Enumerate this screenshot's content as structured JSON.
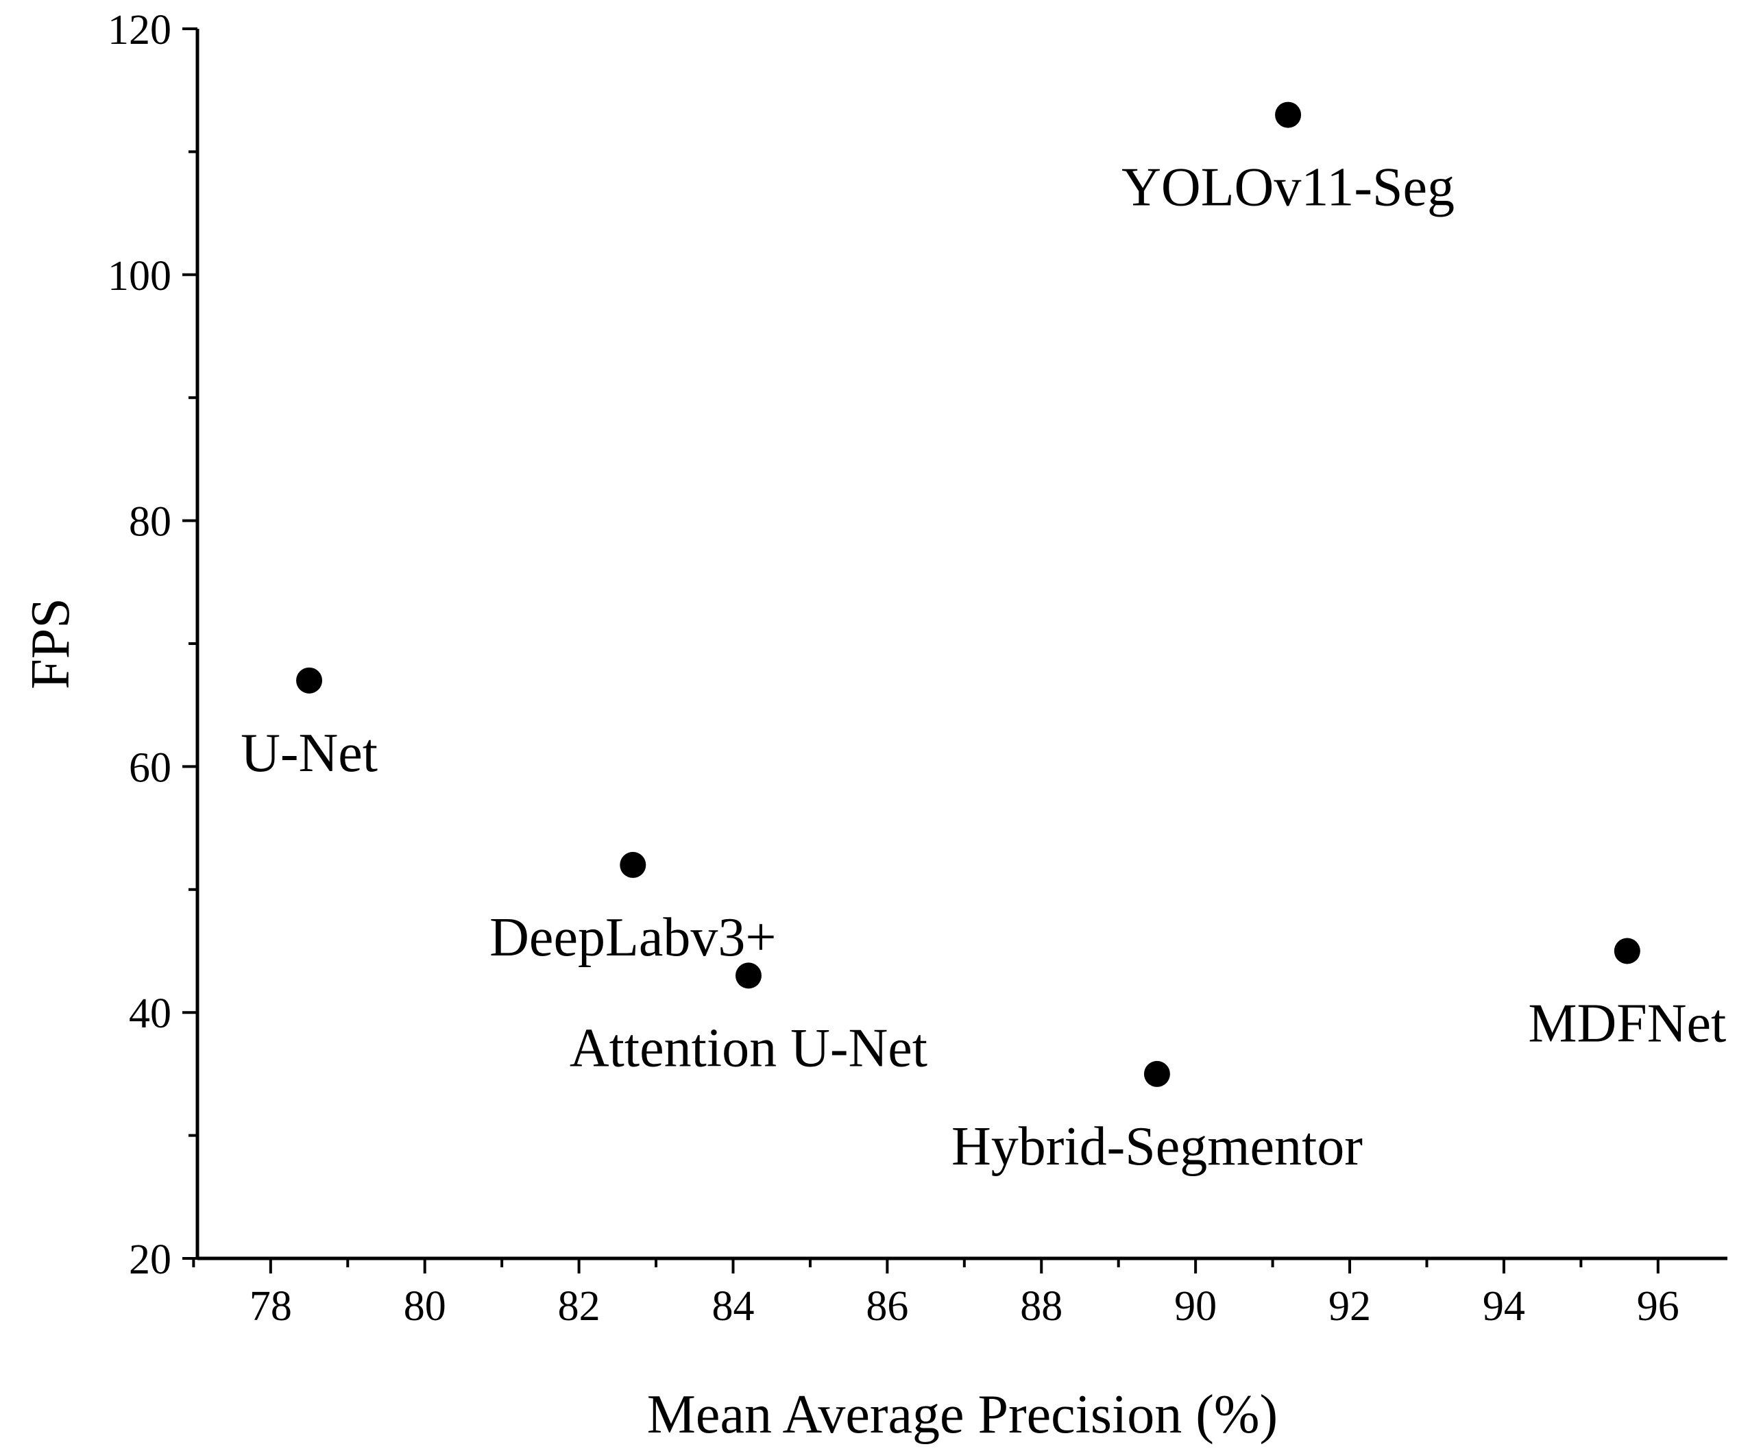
{
  "chart_data": {
    "type": "scatter",
    "title": "",
    "xlabel": "Mean Average Precision (%)",
    "ylabel": "FPS",
    "xlim": [
      77.05,
      96.9
    ],
    "ylim": [
      20,
      120
    ],
    "xticks": [
      78,
      80,
      82,
      84,
      86,
      88,
      90,
      92,
      94,
      96
    ],
    "yticks": [
      20,
      40,
      60,
      80,
      100,
      120
    ],
    "grid": false,
    "marker_color": "#000000",
    "points": [
      {
        "label": "U-Net",
        "x": 78.5,
        "y": 67,
        "label_pos": "below"
      },
      {
        "label": "DeepLabv3+",
        "x": 82.7,
        "y": 52,
        "label_pos": "below"
      },
      {
        "label": "Attention U-Net",
        "x": 84.2,
        "y": 43,
        "label_pos": "below"
      },
      {
        "label": "Hybrid-Segmentor",
        "x": 89.5,
        "y": 35,
        "label_pos": "below"
      },
      {
        "label": "YOLOv11-Seg",
        "x": 91.2,
        "y": 113,
        "label_pos": "below"
      },
      {
        "label": "MDFNet",
        "x": 95.6,
        "y": 45,
        "label_pos": "below"
      }
    ]
  }
}
